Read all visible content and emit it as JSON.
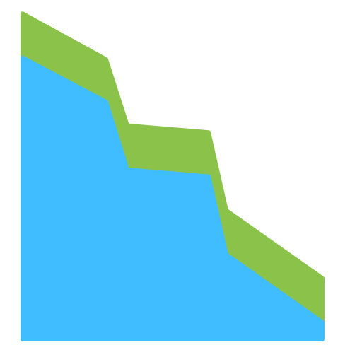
{
  "chart_data": {
    "type": "area",
    "stacked": true,
    "x": [
      0,
      1,
      2,
      3,
      4,
      5
    ],
    "ylim": [
      0,
      100
    ],
    "grid": false,
    "series": [
      {
        "values": [
          83,
          70,
          50,
          48,
          25,
          5
        ],
        "color": "#40BDFF"
      },
      {
        "values": [
          13,
          12.5,
          13,
          13,
          13,
          13
        ],
        "color": "#8BC34A"
      }
    ]
  }
}
